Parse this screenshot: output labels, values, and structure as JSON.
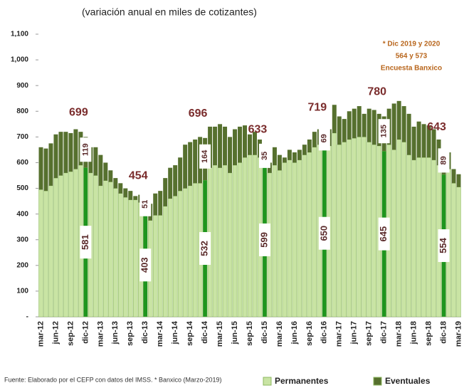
{
  "chart_data": {
    "type": "stacked_bar",
    "subtitle": "(variación anual en miles de cotizantes)",
    "note": [
      "* Dic 2019 y 2020",
      "564 y 573",
      "Encuesta Banxico"
    ],
    "source": "Fuente: Elaborado por el CEFP con datos del IMSS. * Banxico (Marzo-2019)",
    "categories": [
      "mar-12",
      null,
      null,
      "jun-12",
      null,
      null,
      "sep-12",
      null,
      null,
      "dic-12",
      null,
      null,
      "mar-13",
      null,
      null,
      "jun-13",
      null,
      null,
      "sep-13",
      null,
      null,
      "dic-13",
      null,
      null,
      "mar-14",
      null,
      null,
      "jun-14",
      null,
      null,
      "sep-14",
      null,
      null,
      "dic-14",
      null,
      null,
      "mar-15",
      null,
      null,
      "jun-15",
      null,
      null,
      "sep-15",
      null,
      null,
      "dic-15",
      null,
      null,
      "mar-16",
      null,
      null,
      "jun-16",
      null,
      null,
      "sep-16",
      null,
      null,
      "dic-16",
      null,
      null,
      "mar-17",
      null,
      null,
      "jun-17",
      null,
      null,
      "sep-17",
      null,
      null,
      "dic-17",
      null,
      null,
      "mar-18",
      null,
      null,
      "jun-18",
      null,
      null,
      "sep-18",
      null,
      null,
      "dic-18",
      null,
      null,
      "mar-19"
    ],
    "series": [
      {
        "name": "Permanentes",
        "color": "#c9e4a4",
        "highlight_color": "#1e951e",
        "values": [
          495,
          490,
          510,
          540,
          550,
          560,
          565,
          575,
          590,
          581,
          560,
          550,
          510,
          530,
          525,
          500,
          480,
          465,
          455,
          455,
          445,
          403,
          375,
          395,
          395,
          430,
          460,
          470,
          490,
          500,
          510,
          520,
          520,
          532,
          580,
          590,
          580,
          590,
          560,
          590,
          600,
          620,
          630,
          630,
          620,
          599,
          560,
          590,
          570,
          600,
          610,
          600,
          610,
          630,
          640,
          660,
          670,
          650,
          665,
          715,
          670,
          680,
          690,
          695,
          700,
          700,
          680,
          670,
          665,
          645,
          670,
          650,
          690,
          680,
          630,
          610,
          620,
          620,
          620,
          610,
          590,
          554,
          575,
          520,
          505
        ]
      },
      {
        "name": "Eventuales",
        "color": "#56702e",
        "values": [
          165,
          165,
          165,
          170,
          170,
          160,
          150,
          155,
          130,
          119,
          100,
          110,
          120,
          70,
          45,
          40,
          40,
          35,
          35,
          15,
          30,
          51,
          65,
          85,
          95,
          110,
          120,
          120,
          130,
          170,
          170,
          170,
          180,
          164,
          160,
          150,
          170,
          150,
          140,
          140,
          140,
          125,
          80,
          90,
          70,
          35,
          40,
          70,
          60,
          20,
          40,
          40,
          40,
          40,
          50,
          60,
          60,
          69,
          65,
          110,
          110,
          90,
          110,
          115,
          120,
          90,
          130,
          135,
          125,
          135,
          140,
          180,
          150,
          140,
          160,
          130,
          140,
          130,
          125,
          120,
          100,
          89,
          65,
          55,
          50
        ]
      }
    ],
    "annotations": [
      {
        "text": "699",
        "category": "dic-12"
      },
      {
        "text": "454",
        "category": "dic-13"
      },
      {
        "text": "696",
        "category": "dic-14"
      },
      {
        "text": "633",
        "category": "dic-15"
      },
      {
        "text": "719",
        "category": "dic-16"
      },
      {
        "text": "780",
        "category": "dic-17"
      },
      {
        "text": "643",
        "category": "dic-18"
      }
    ],
    "ylim": [
      0,
      1100
    ],
    "yticks": [
      {
        "value": 0,
        "label": "-"
      },
      100,
      200,
      300,
      400,
      500,
      600,
      700,
      800,
      900,
      {
        "value": 1000,
        "label": "1,000"
      },
      {
        "value": 1100,
        "label": "1,100"
      }
    ],
    "legend": "bottom-right"
  }
}
